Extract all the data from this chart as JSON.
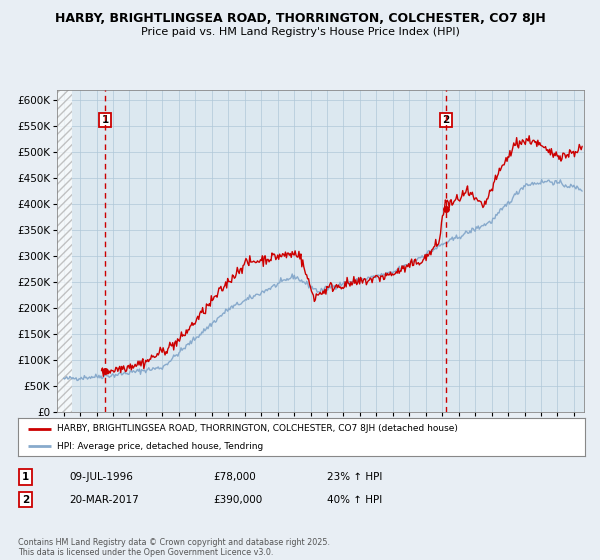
{
  "title1": "HARBY, BRIGHTLINGSEA ROAD, THORRINGTON, COLCHESTER, CO7 8JH",
  "title2": "Price paid vs. HM Land Registry's House Price Index (HPI)",
  "background_color": "#e8eef4",
  "plot_bg_color": "#dce8f0",
  "grid_color": "#b0c8d8",
  "house_color": "#cc0000",
  "hpi_color": "#88aacc",
  "marker1_date_x": 1996.52,
  "marker1_price": 78000,
  "marker2_date_x": 2017.22,
  "marker2_price": 390000,
  "vline1_x": 1996.52,
  "vline2_x": 2017.22,
  "xmin": 1993.6,
  "xmax": 2025.6,
  "ymin": 0,
  "ymax": 620000,
  "ytick_values": [
    0,
    50000,
    100000,
    150000,
    200000,
    250000,
    300000,
    350000,
    400000,
    450000,
    500000,
    550000,
    600000
  ],
  "ytick_labels": [
    "£0",
    "£50K",
    "£100K",
    "£150K",
    "£200K",
    "£250K",
    "£300K",
    "£350K",
    "£400K",
    "£450K",
    "£500K",
    "£550K",
    "£600K"
  ],
  "legend_house_label": "HARBY, BRIGHTLINGSEA ROAD, THORRINGTON, COLCHESTER, CO7 8JH (detached house)",
  "legend_hpi_label": "HPI: Average price, detached house, Tendring",
  "footnote": "Contains HM Land Registry data © Crown copyright and database right 2025.\nThis data is licensed under the Open Government Licence v3.0.",
  "table_rows": [
    {
      "num": "1",
      "date": "09-JUL-1996",
      "price": "£78,000",
      "hpi": "23% ↑ HPI"
    },
    {
      "num": "2",
      "date": "20-MAR-2017",
      "price": "£390,000",
      "hpi": "40% ↑ HPI"
    }
  ]
}
